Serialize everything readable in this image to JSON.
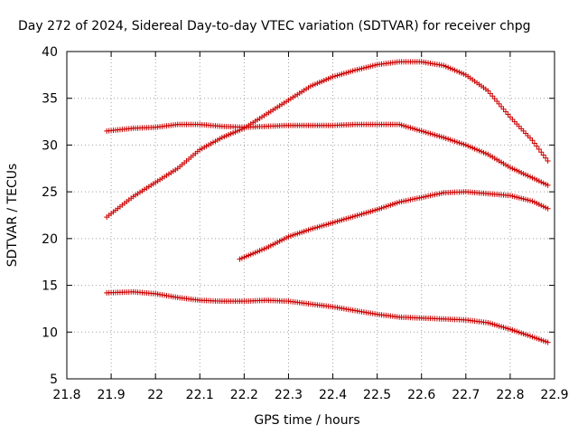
{
  "chart_data": {
    "type": "scatter",
    "title": "Day 272 of 2024, Sidereal Day-to-day VTEC variation (SDTVAR) for receiver chpg",
    "xlabel": "GPS time / hours",
    "ylabel": "SDTVAR / TECUs",
    "xlim": [
      21.8,
      22.9
    ],
    "ylim": [
      5,
      40
    ],
    "grid": true,
    "marker": "plus",
    "marker_color": "#cc0000",
    "x_ticks": [
      "21.8",
      "21.9",
      "22",
      "22.1",
      "22.2",
      "22.3",
      "22.4",
      "22.5",
      "22.6",
      "22.7",
      "22.8",
      "22.9"
    ],
    "y_ticks": [
      "5",
      "10",
      "15",
      "20",
      "25",
      "30",
      "35",
      "40"
    ],
    "series": [
      {
        "name": "trace-1",
        "x": [
          21.89,
          21.95,
          22.0,
          22.05,
          22.1,
          22.15,
          22.2,
          22.25,
          22.3,
          22.35,
          22.4,
          22.45,
          22.5,
          22.55,
          22.6,
          22.65,
          22.7,
          22.75,
          22.8,
          22.85,
          22.885
        ],
        "y": [
          22.3,
          24.5,
          26.0,
          27.5,
          29.5,
          30.8,
          31.8,
          33.3,
          34.8,
          36.3,
          37.3,
          38.0,
          38.6,
          38.9,
          38.9,
          38.5,
          37.5,
          35.8,
          33.0,
          30.5,
          28.3
        ]
      },
      {
        "name": "trace-2",
        "x": [
          21.89,
          21.95,
          22.0,
          22.05,
          22.1,
          22.15,
          22.2,
          22.25,
          22.3,
          22.35,
          22.4,
          22.45,
          22.5,
          22.55,
          22.6,
          22.65,
          22.7,
          22.75,
          22.8,
          22.85,
          22.885
        ],
        "y": [
          31.5,
          31.8,
          31.9,
          32.2,
          32.2,
          32.0,
          31.9,
          32.0,
          32.1,
          32.1,
          32.1,
          32.2,
          32.2,
          32.2,
          31.5,
          30.8,
          30.0,
          29.0,
          27.6,
          26.5,
          25.7
        ]
      },
      {
        "name": "trace-3",
        "x": [
          22.19,
          22.25,
          22.3,
          22.35,
          22.4,
          22.45,
          22.5,
          22.55,
          22.6,
          22.65,
          22.7,
          22.75,
          22.8,
          22.85,
          22.885
        ],
        "y": [
          17.8,
          19.0,
          20.2,
          21.0,
          21.7,
          22.4,
          23.1,
          23.9,
          24.4,
          24.9,
          25.0,
          24.8,
          24.6,
          24.0,
          23.2
        ]
      },
      {
        "name": "trace-4",
        "x": [
          21.89,
          21.95,
          22.0,
          22.05,
          22.1,
          22.15,
          22.2,
          22.25,
          22.3,
          22.35,
          22.4,
          22.45,
          22.5,
          22.55,
          22.6,
          22.65,
          22.7,
          22.75,
          22.8,
          22.85,
          22.885
        ],
        "y": [
          14.2,
          14.3,
          14.1,
          13.7,
          13.4,
          13.3,
          13.3,
          13.4,
          13.3,
          13.0,
          12.7,
          12.3,
          11.9,
          11.6,
          11.5,
          11.4,
          11.3,
          11.0,
          10.3,
          9.5,
          8.9
        ]
      }
    ]
  }
}
